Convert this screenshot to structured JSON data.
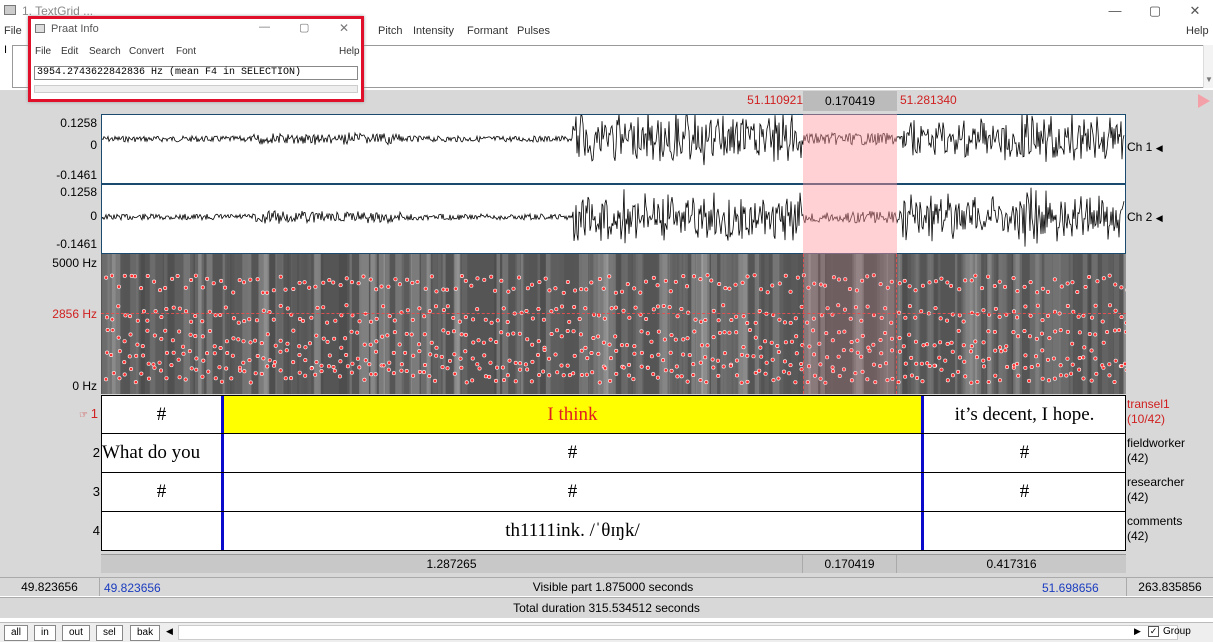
{
  "window": {
    "title": "1. TextGrid ...",
    "minimize_glyph": "—",
    "maximize_glyph": "▢",
    "close_glyph": "✕"
  },
  "menubar": {
    "items": [
      "File",
      "Pitch",
      "Intensity",
      "Formant",
      "Pulses"
    ],
    "help": "Help"
  },
  "praat_info": {
    "title": "Praat Info",
    "menus": [
      "File",
      "Edit",
      "Search",
      "Convert",
      "Font"
    ],
    "help": "Help",
    "output": "3954.2743622842836 Hz (mean F4 in SELECTION)"
  },
  "selection": {
    "start": "51.110921",
    "duration": "0.170419",
    "end": "51.281340"
  },
  "waveform": {
    "ch1": {
      "max": "0.1258",
      "zero": "0",
      "min": "-0.1461",
      "label": "Ch 1"
    },
    "ch2": {
      "max": "0.1258",
      "zero": "0",
      "min": "-0.1461",
      "label": "Ch 2"
    }
  },
  "spectrogram": {
    "max_label": "5000 Hz",
    "cursor_label": "2856 Hz",
    "min_label": "0 Hz",
    "cursor_hz": 2856,
    "max_hz": 5000
  },
  "tiers": [
    {
      "num": "1",
      "name": "transel1",
      "count": "(10/42)",
      "cells": [
        "#",
        "I think",
        "it’s decent, I hope."
      ]
    },
    {
      "num": "2",
      "name": "fieldworker",
      "count": "(42)",
      "cells": [
        "What do you",
        "#",
        "#"
      ]
    },
    {
      "num": "3",
      "name": "researcher",
      "count": "(42)",
      "cells": [
        "#",
        "#",
        "#"
      ]
    },
    {
      "num": "4",
      "name": "comments",
      "count": "(42)",
      "cells": [
        "",
        "th1111ink. /ˈθɪŋk/",
        ""
      ]
    }
  ],
  "durations": {
    "left": "1.287265",
    "sel": "0.170419",
    "right": "0.417316"
  },
  "visible": {
    "outer_left": "49.823656",
    "left": "49.823656",
    "label": "Visible part 1.875000 seconds",
    "right": "51.698656",
    "outer_right": "263.835856"
  },
  "total": "Total duration 315.534512 seconds",
  "bottom_buttons": [
    "all",
    "in",
    "out",
    "sel",
    "bak"
  ],
  "group": {
    "label": "Group",
    "checked": true
  },
  "colors": {
    "selection_pink": "#f7c8cc",
    "tier_highlight": "#ffff00",
    "tier_red_text": "#e02020",
    "boundary_blue": "#0a0acc",
    "praat_border": "#e0102a"
  }
}
